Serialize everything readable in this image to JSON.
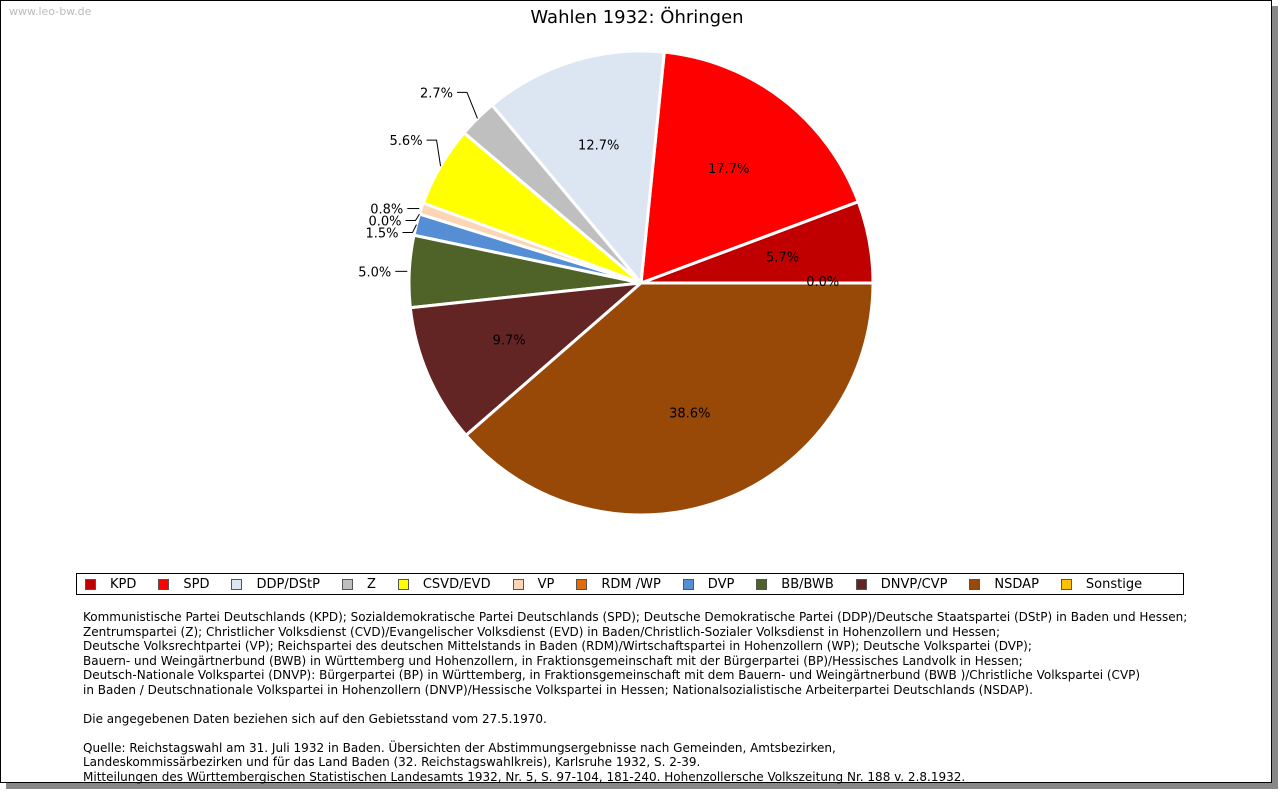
{
  "watermark": "www.leo-bw.de",
  "chart_data": {
    "type": "pie",
    "title": "Wahlen 1932: Öhringen",
    "categories": [
      "KPD",
      "SPD",
      "DDP/DStP",
      "Z",
      "CSVD/EVD",
      "VP",
      "RDM /WP",
      "DVP",
      "BB/BWB",
      "DNVP/CVP",
      "NSDAP",
      "Sonstige"
    ],
    "values": [
      5.7,
      17.7,
      12.7,
      2.7,
      5.6,
      0.8,
      0.0,
      1.5,
      5.0,
      9.7,
      38.6,
      0.0
    ],
    "labels": [
      "5.7%",
      "17.7%",
      "12.7%",
      "2.7%",
      "5.6%",
      "0.8%",
      "0.0%",
      "1.5%",
      "5.0%",
      "9.7%",
      "38.6%",
      "0.0%"
    ],
    "colors": [
      "#c00000",
      "#ff0000",
      "#dce6f2",
      "#bfbfbf",
      "#ffff00",
      "#fcd5b5",
      "#e36c09",
      "#558ed5",
      "#4f6228",
      "#632523",
      "#984807",
      "#ffc000"
    ],
    "legend_position": "bottom"
  },
  "notes": {
    "parties": [
      "Kommunistische Partei Deutschlands (KPD); Sozialdemokratische Partei Deutschlands (SPD); Deutsche Demokratische Partei (DDP)/Deutsche Staatspartei (DStP) in Baden und Hessen;",
      "Zentrumspartei (Z); Christlicher Volksdienst (CVD)/Evangelischer Volksdienst (EVD) in Baden/Christlich-Sozialer Volksdienst in Hohenzollern und Hessen;",
      "Deutsche Volksrechtpartei (VP); Reichspartei des deutschen Mittelstands in Baden (RDM)/Wirtschaftspartei in Hohenzollern (WP); Deutsche Volkspartei (DVP);",
      "Bauern- und Weingärtnerbund (BWB) in Württemberg und Hohenzollern, in Fraktionsgemeinschaft mit der Bürgerpartei (BP)/Hessisches Landvolk in Hessen;",
      "Deutsch-Nationale Volkspartei (DNVP): Bürgerpartei (BP) in Württemberg, in Fraktionsgemeinschaft mit dem Bauern- und Weingärtnerbund (BWB )/Christliche Volkspartei (CVP)",
      "in Baden / Deutschnationale Volkspartei in Hohenzollern (DNVP)/Hessische Volkspartei in Hessen; Nationalsozialistische Arbeiterpartei Deutschlands (NSDAP)."
    ],
    "gebietsstand": "Die angegebenen Daten beziehen sich auf den Gebietsstand vom 27.5.1970.",
    "source": [
      "Quelle: Reichstagswahl am 31. Juli 1932 in Baden. Übersichten der Abstimmungsergebnisse nach Gemeinden, Amtsbezirken,",
      "Landeskommissärbezirken und für das Land Baden (32. Reichstagswahlkreis), Karlsruhe 1932, S. 2-39.",
      "Mitteilungen des Württembergischen Statistischen Landesamts 1932, Nr. 5, S. 97-104, 181-240. Hohenzollersche Volkszeitung Nr. 188 v. 2.8.1932."
    ]
  }
}
